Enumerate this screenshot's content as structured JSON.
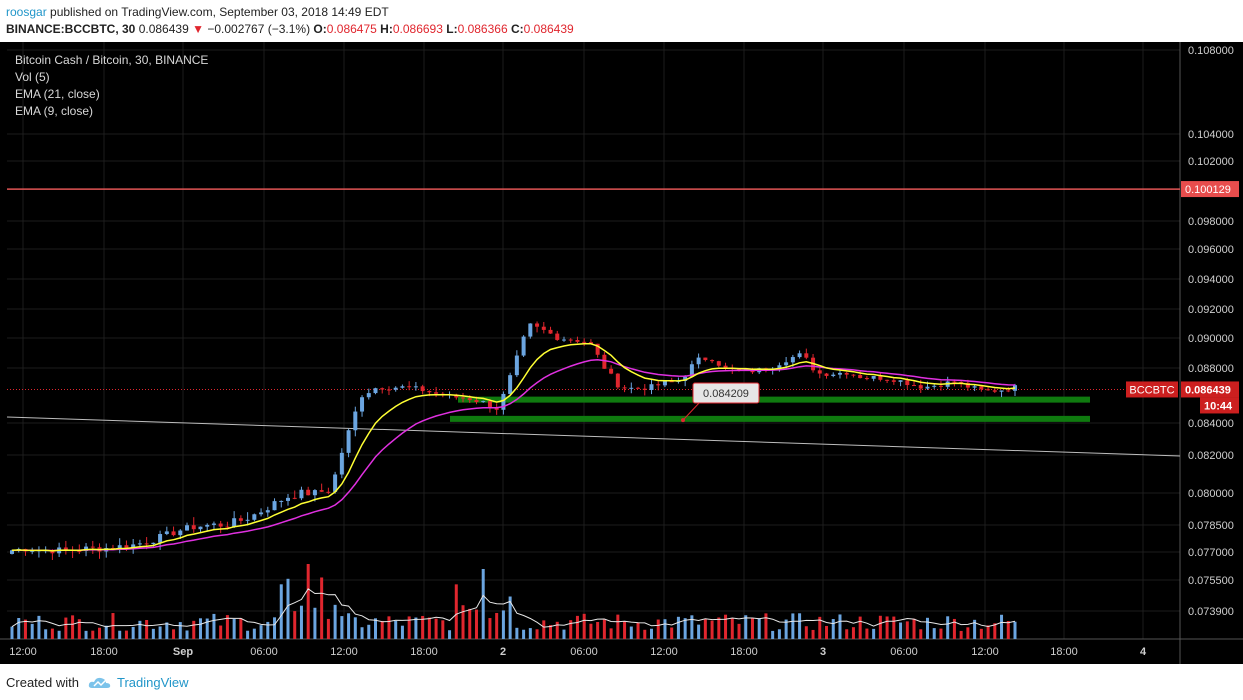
{
  "header": {
    "author": "roosgar",
    "published_text": "published on TradingView.com, September 03, 2018 14:49 EDT",
    "symbol": "BINANCE:BCCBTC, 30",
    "last": "0.086439",
    "arrow": "▼",
    "change": "−0.002767 (−3.1%)",
    "o_label": "O:",
    "o_value": "0.086475",
    "h_label": "H:",
    "h_value": "0.086693",
    "l_label": "L:",
    "l_value": "0.086366",
    "c_label": "C:",
    "c_value": "0.086439"
  },
  "legend": {
    "title": "Bitcoin Cash / Bitcoin, 30, BINANCE",
    "vol": "Vol (5)",
    "ema21": "EMA (21, close)",
    "ema9": "EMA (9, close)"
  },
  "footer": {
    "created": "Created with",
    "brand": "TradingView"
  },
  "colors": {
    "up": "#6ba5e0",
    "down": "#e0262e",
    "ema9": "#ffff33",
    "ema21": "#e030e0",
    "support": "#0f7a0f",
    "resistance": "#e05555"
  },
  "chart_data": {
    "type": "candlestick",
    "price_axis_ticks": [
      "0.108000",
      "0.104000",
      "0.102000",
      "0.098000",
      "0.096000",
      "0.094000",
      "0.092000",
      "0.090000",
      "0.088000",
      "0.084000",
      "0.082000",
      "0.080000",
      "0.078500",
      "0.077000",
      "0.075500",
      "0.073900"
    ],
    "time_axis_ticks": [
      "12:00",
      "18:00",
      "Sep",
      "06:00",
      "12:00",
      "18:00",
      "2",
      "06:00",
      "12:00",
      "18:00",
      "3",
      "06:00",
      "12:00",
      "18:00",
      "4"
    ],
    "resistance_label": "0.100129",
    "resistance_value": 0.100129,
    "last_price_label": "0.086439",
    "last_price_value": 0.086439,
    "symbol_tag": "BCCBTC",
    "countdown": "10:44",
    "annotation_label": "0.084209",
    "annotation_value": 0.084209,
    "support_zones": [
      0.0857,
      0.0843
    ],
    "price_path": [
      0.0771,
      0.0772,
      0.0771,
      0.0771,
      0.0771,
      0.0772,
      0.0772,
      0.0773,
      0.0774,
      0.0776,
      0.0779,
      0.0782,
      0.0784,
      0.0785,
      0.0785,
      0.0787,
      0.079,
      0.0794,
      0.0798,
      0.08,
      0.08,
      0.0802,
      0.083,
      0.086,
      0.0866,
      0.0866,
      0.0866,
      0.0864,
      0.0861,
      0.0859,
      0.0858,
      0.0855,
      0.085,
      0.088,
      0.0909,
      0.0905,
      0.09,
      0.0899,
      0.0897,
      0.088,
      0.0866,
      0.0865,
      0.0866,
      0.0869,
      0.0871,
      0.0885,
      0.0887,
      0.0879,
      0.0878,
      0.0878,
      0.0881,
      0.0886,
      0.0889,
      0.0876,
      0.0876,
      0.0877,
      0.0873,
      0.0873,
      0.0872,
      0.0869,
      0.0866,
      0.0868,
      0.087,
      0.0866,
      0.0863,
      0.0864,
      0.0866
    ]
  }
}
